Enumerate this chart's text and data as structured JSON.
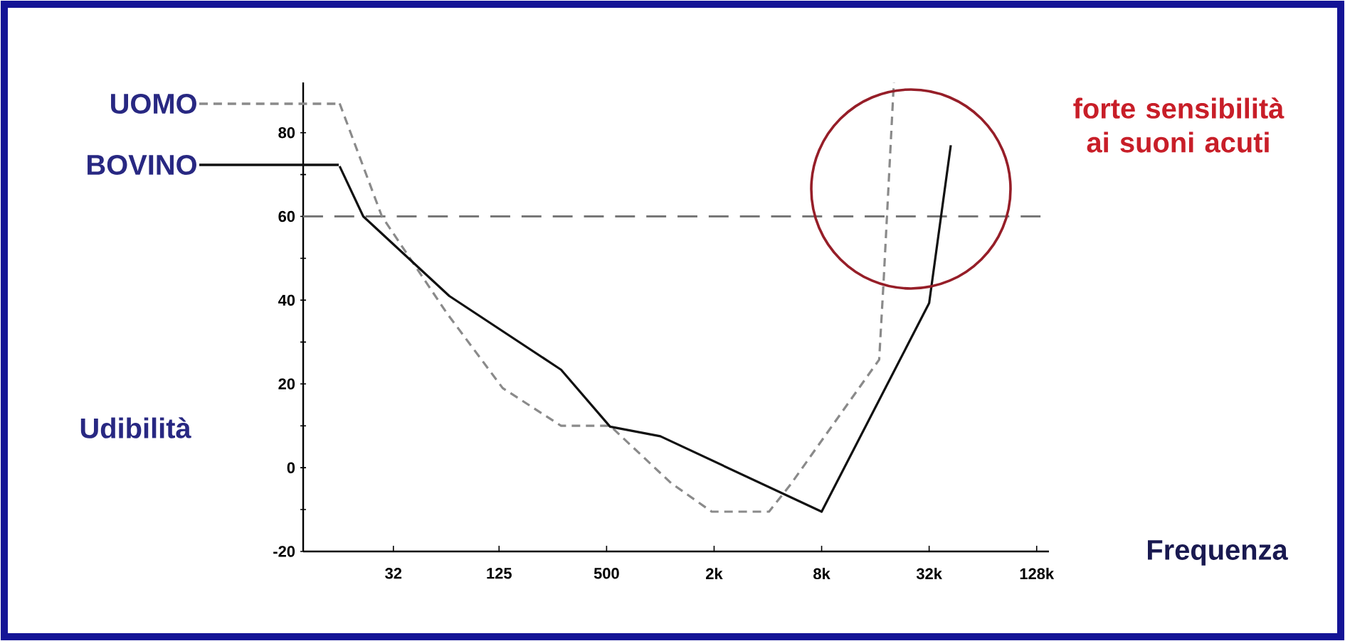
{
  "chart_data": {
    "type": "line",
    "xlabel": "Frequenza",
    "ylabel": "Udibilità",
    "log": "x",
    "legend": "left",
    "xlim": [
      10,
      150000
    ],
    "ylim": [
      -20,
      92
    ],
    "xticks": [
      32,
      125,
      500,
      {
        "value": 2000,
        "label": "2k"
      },
      {
        "value": 8000,
        "label": "8k"
      },
      {
        "value": 32000,
        "label": "32k"
      },
      {
        "value": 128000,
        "label": "128k"
      }
    ],
    "yticks": [
      -20,
      {
        "value": -10,
        "label": null
      },
      0,
      {
        "value": 10,
        "label": null
      },
      20,
      {
        "value": 30,
        "label": null
      },
      40,
      {
        "value": 50,
        "label": null
      },
      60,
      {
        "value": 70,
        "label": null
      },
      80
    ],
    "series": [
      {
        "name": "UOMO",
        "color": "#8a8a8a",
        "line_style": "dashed",
        "x": [
          16,
          27.6,
          63.5,
          131,
          278,
          523,
          1150,
          1940,
          4060,
          5360,
          16800,
          17800,
          20300
        ],
        "values": [
          87,
          60,
          37,
          19,
          10,
          10,
          -3.7,
          -10.5,
          -10.5,
          -4,
          25.8,
          44.7,
          92
        ]
      },
      {
        "name": "BOVINO",
        "color": "#111111",
        "line_style": "solid",
        "x": [
          16,
          21.7,
          65.8,
          278,
          523,
          1000,
          8000,
          32000,
          42300
        ],
        "values": [
          72,
          60,
          41,
          23.4,
          9.8,
          7.5,
          -10.5,
          39.3,
          77
        ]
      }
    ],
    "ref_lines": [
      {
        "axis": "y",
        "value": 60,
        "color": "#777777",
        "line_style": "dashed"
      }
    ],
    "annotations": [
      "forte sensibilità ai suoni acuti"
    ]
  }
}
